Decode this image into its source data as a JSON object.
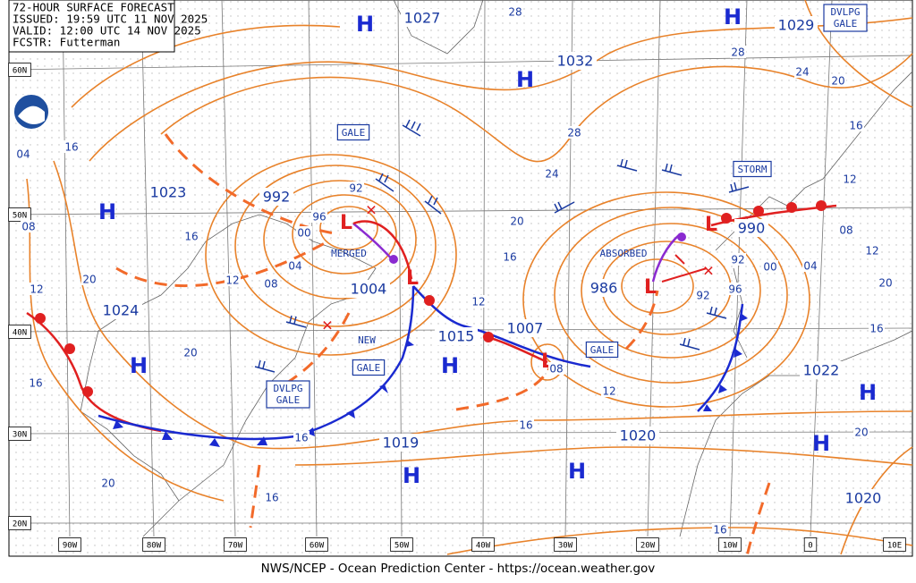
{
  "header": {
    "lines": [
      "72-HOUR SURFACE FORECAST",
      "ISSUED: 19:59 UTC 11 NOV 2025",
      "VALID: 12:00 UTC 14 NOV 2025",
      "FCSTR: Futterman"
    ]
  },
  "footer": "NWS/NCEP - Ocean Prediction Center - https://ocean.weather.gov",
  "latitude_labels": [
    "60N",
    "50N",
    "40N",
    "30N",
    "20N"
  ],
  "longitude_labels": [
    "90W",
    "80W",
    "70W",
    "60W",
    "50W",
    "40W",
    "30W",
    "20W",
    "10W",
    "0",
    "10E"
  ],
  "pressure_centers": [
    "1027",
    "1029",
    "1032",
    "1023",
    "992",
    "1004",
    "1024",
    "1007",
    "1015",
    "1019",
    "1020",
    "1022",
    "1020",
    "986",
    "990"
  ],
  "highs": [
    "H",
    "H",
    "H",
    "H",
    "H",
    "H",
    "H",
    "H",
    "H",
    "H"
  ],
  "lows": [
    "L",
    "L",
    "L",
    "L",
    "L"
  ],
  "isobar_labels": [
    "28",
    "28",
    "24",
    "20",
    "16",
    "12",
    "08",
    "12",
    "20",
    "16",
    "28",
    "24",
    "20",
    "16",
    "12",
    "00",
    "04",
    "92",
    "96",
    "92",
    "08",
    "12",
    "16",
    "20",
    "16",
    "16",
    "16",
    "20",
    "20",
    "16",
    "12",
    "08",
    "04",
    "16",
    "16",
    "20",
    "12",
    "08",
    "04",
    "00",
    "96",
    "92"
  ],
  "warnings": [
    "GALE",
    "STORM",
    "GALE",
    "GALE",
    "DVLPG GALE",
    "DVLPG GALE"
  ],
  "notes": [
    "MERGED",
    "ABSORBED",
    "NEW"
  ]
}
